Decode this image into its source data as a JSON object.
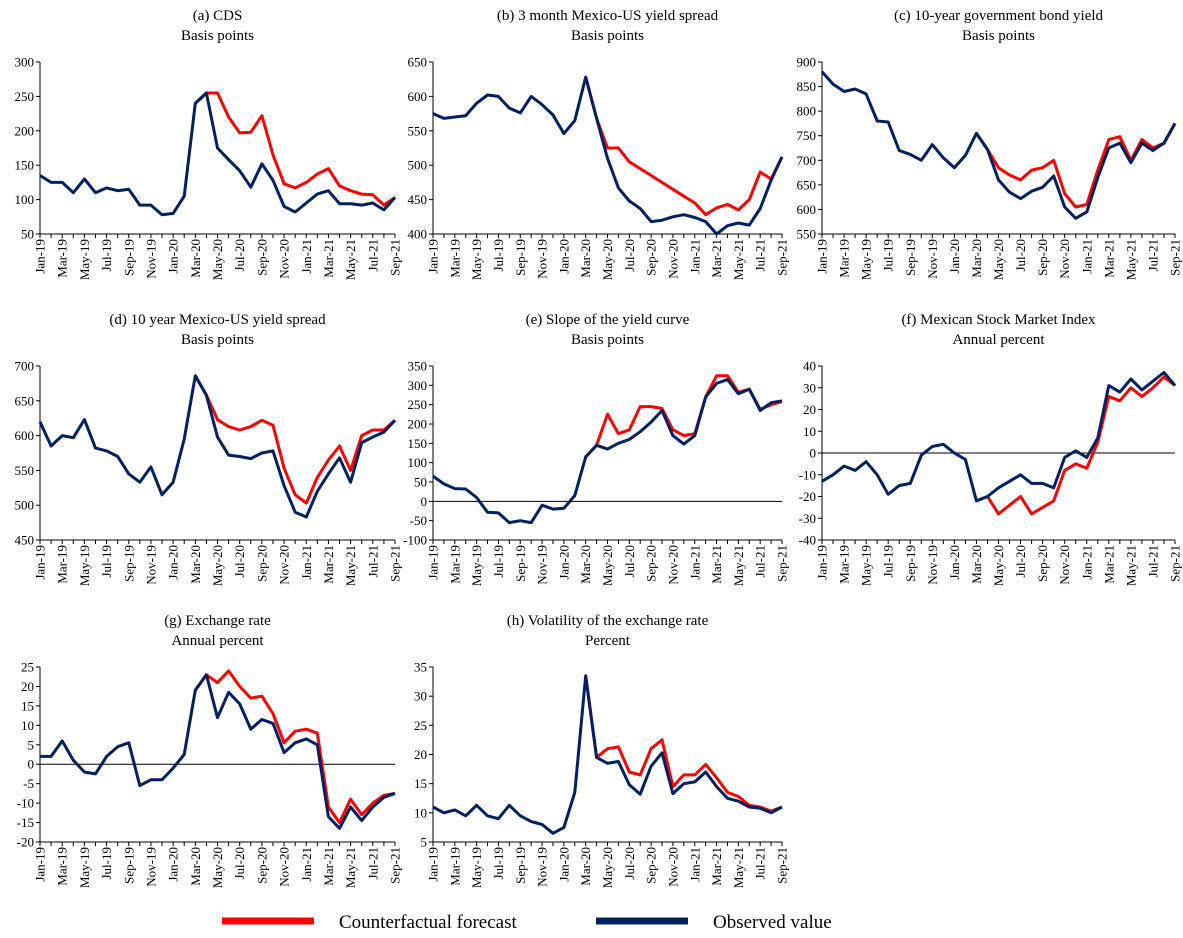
{
  "chart_data": [
    {
      "type": "line",
      "title": "(a) CDS",
      "subtitle": "Basis points",
      "categories": [
        "Jan-19",
        null,
        "Mar-19",
        null,
        "May-19",
        null,
        "Jul-19",
        null,
        "Sep-19",
        null,
        "Nov-19",
        null,
        "Jan-20",
        null,
        "Mar-20",
        null,
        "May-20",
        null,
        "Jul-20",
        null,
        "Sep-20",
        null,
        "Nov-20",
        null,
        "Jan-21",
        null,
        "Mar-21",
        null,
        "May-21",
        null,
        "Jul-21",
        null,
        "Sep-21"
      ],
      "ylim": [
        50,
        300
      ],
      "yticks": [
        50,
        100,
        150,
        200,
        250,
        300
      ],
      "zero_line": false,
      "series": [
        {
          "color": "#ff0000",
          "values": [
            null,
            null,
            null,
            null,
            null,
            null,
            null,
            null,
            null,
            null,
            null,
            null,
            null,
            null,
            240,
            255,
            255,
            220,
            197,
            198,
            222,
            165,
            123,
            117,
            125,
            137,
            145,
            120,
            113,
            108,
            107,
            92,
            103
          ]
        },
        {
          "color": "#002060",
          "values": [
            135,
            125,
            125,
            110,
            130,
            110,
            117,
            113,
            115,
            92,
            92,
            78,
            80,
            105,
            240,
            255,
            175,
            158,
            142,
            118,
            152,
            128,
            90,
            82,
            95,
            108,
            113,
            94,
            94,
            92,
            95,
            85,
            103
          ]
        }
      ]
    },
    {
      "type": "line",
      "title": "(b) 3 month Mexico-US yield spread",
      "subtitle": "Basis points",
      "categories": [
        "Jan-19",
        null,
        "Mar-19",
        null,
        "May-19",
        null,
        "Jul-19",
        null,
        "Sep-19",
        null,
        "Nov-19",
        null,
        "Jan-20",
        null,
        "Mar-20",
        null,
        "May-20",
        null,
        "Jul-20",
        null,
        "Sep-20",
        null,
        "Nov-20",
        null,
        "Jan-21",
        null,
        "Mar-21",
        null,
        "May-21",
        null,
        "Jul-21",
        null,
        "Sep-21"
      ],
      "ylim": [
        400,
        650
      ],
      "yticks": [
        400,
        450,
        500,
        550,
        600,
        650
      ],
      "zero_line": false,
      "series": [
        {
          "color": "#ff0000",
          "values": [
            null,
            null,
            null,
            null,
            null,
            null,
            null,
            null,
            null,
            null,
            null,
            null,
            null,
            null,
            628,
            568,
            525,
            525,
            505,
            495,
            485,
            475,
            465,
            455,
            445,
            428,
            438,
            443,
            435,
            450,
            490,
            480,
            512
          ]
        },
        {
          "color": "#002060",
          "values": [
            575,
            568,
            570,
            572,
            590,
            602,
            600,
            583,
            576,
            600,
            588,
            573,
            546,
            565,
            628,
            568,
            510,
            467,
            448,
            437,
            418,
            420,
            425,
            428,
            424,
            418,
            400,
            412,
            416,
            413,
            437,
            478,
            512
          ]
        }
      ]
    },
    {
      "type": "line",
      "title": "(c) 10-year government bond yield",
      "subtitle": "Basis points",
      "categories": [
        "Jan-19",
        null,
        "Mar-19",
        null,
        "May-19",
        null,
        "Jul-19",
        null,
        "Sep-19",
        null,
        "Nov-19",
        null,
        "Jan-20",
        null,
        "Mar-20",
        null,
        "May-20",
        null,
        "Jul-20",
        null,
        "Sep-20",
        null,
        "Nov-20",
        null,
        "Jan-21",
        null,
        "Mar-21",
        null,
        "May-21",
        null,
        "Jul-21",
        null,
        "Sep-21"
      ],
      "ylim": [
        550,
        900
      ],
      "yticks": [
        550,
        600,
        650,
        700,
        750,
        800,
        850,
        900
      ],
      "zero_line": false,
      "series": [
        {
          "color": "#ff0000",
          "values": [
            null,
            null,
            null,
            null,
            null,
            null,
            null,
            null,
            null,
            null,
            null,
            null,
            null,
            null,
            755,
            722,
            685,
            670,
            660,
            680,
            685,
            700,
            632,
            605,
            610,
            680,
            742,
            748,
            700,
            742,
            725,
            735,
            775
          ]
        },
        {
          "color": "#002060",
          "values": [
            880,
            855,
            840,
            845,
            835,
            780,
            778,
            720,
            712,
            700,
            732,
            705,
            685,
            710,
            755,
            722,
            660,
            635,
            622,
            637,
            645,
            668,
            605,
            582,
            595,
            665,
            725,
            735,
            695,
            735,
            720,
            735,
            775
          ]
        }
      ]
    },
    {
      "type": "line",
      "title": "(d) 10 year Mexico-US yield spread",
      "subtitle": "Basis points",
      "categories": [
        "Jan-19",
        null,
        "Mar-19",
        null,
        "May-19",
        null,
        "Jul-19",
        null,
        "Sep-19",
        null,
        "Nov-19",
        null,
        "Jan-20",
        null,
        "Mar-20",
        null,
        "May-20",
        null,
        "Jul-20",
        null,
        "Sep-20",
        null,
        "Nov-20",
        null,
        "Jan-21",
        null,
        "Mar-21",
        null,
        "May-21",
        null,
        "Jul-21",
        null,
        "Sep-21"
      ],
      "ylim": [
        450,
        700
      ],
      "yticks": [
        450,
        500,
        550,
        600,
        650,
        700
      ],
      "zero_line": false,
      "series": [
        {
          "color": "#ff0000",
          "values": [
            null,
            null,
            null,
            null,
            null,
            null,
            null,
            null,
            null,
            null,
            null,
            null,
            null,
            null,
            686,
            658,
            623,
            613,
            608,
            613,
            622,
            615,
            553,
            515,
            503,
            540,
            565,
            585,
            550,
            600,
            608,
            608,
            622
          ]
        },
        {
          "color": "#002060",
          "values": [
            620,
            585,
            600,
            597,
            623,
            582,
            578,
            570,
            545,
            533,
            555,
            515,
            533,
            595,
            686,
            658,
            598,
            572,
            570,
            567,
            575,
            578,
            528,
            490,
            483,
            520,
            545,
            568,
            533,
            590,
            598,
            605,
            622
          ]
        }
      ]
    },
    {
      "type": "line",
      "title": "(e) Slope of the yield curve",
      "subtitle": "Basis points",
      "categories": [
        "Jan-19",
        null,
        "Mar-19",
        null,
        "May-19",
        null,
        "Jul-19",
        null,
        "Sep-19",
        null,
        "Nov-19",
        null,
        "Jan-20",
        null,
        "Mar-20",
        null,
        "May-20",
        null,
        "Jul-20",
        null,
        "Sep-20",
        null,
        "Nov-20",
        null,
        "Jan-21",
        null,
        "Mar-21",
        null,
        "May-21",
        null,
        "Jul-21",
        null,
        "Sep-21"
      ],
      "ylim": [
        -100,
        350
      ],
      "yticks": [
        -100,
        -50,
        0,
        50,
        100,
        150,
        200,
        250,
        300,
        350
      ],
      "zero_line": true,
      "series": [
        {
          "color": "#ff0000",
          "values": [
            null,
            null,
            null,
            null,
            null,
            null,
            null,
            null,
            null,
            null,
            null,
            null,
            null,
            null,
            115,
            145,
            225,
            175,
            185,
            245,
            245,
            240,
            185,
            170,
            175,
            270,
            325,
            325,
            282,
            290,
            238,
            250,
            258
          ]
        },
        {
          "color": "#002060",
          "values": [
            65,
            45,
            33,
            32,
            10,
            -28,
            -30,
            -55,
            -50,
            -55,
            -10,
            -20,
            -18,
            15,
            115,
            145,
            135,
            150,
            160,
            180,
            205,
            235,
            170,
            148,
            170,
            270,
            305,
            315,
            278,
            290,
            235,
            255,
            260
          ]
        }
      ]
    },
    {
      "type": "line",
      "title": "(f) Mexican Stock Market Index",
      "subtitle": "Annual percent",
      "categories": [
        "Jan-19",
        null,
        "Mar-19",
        null,
        "May-19",
        null,
        "Jul-19",
        null,
        "Sep-19",
        null,
        "Nov-19",
        null,
        "Jan-20",
        null,
        "Mar-20",
        null,
        "May-20",
        null,
        "Jul-20",
        null,
        "Sep-20",
        null,
        "Nov-20",
        null,
        "Jan-21",
        null,
        "Mar-21",
        null,
        "May-21",
        null,
        "Jul-21",
        null,
        "Sep-21"
      ],
      "ylim": [
        -40,
        40
      ],
      "yticks": [
        -40,
        -30,
        -20,
        -10,
        0,
        10,
        20,
        30,
        40
      ],
      "zero_line": true,
      "series": [
        {
          "color": "#ff0000",
          "values": [
            null,
            null,
            null,
            null,
            null,
            null,
            null,
            null,
            null,
            null,
            null,
            null,
            null,
            null,
            -22,
            -20,
            -28,
            -24,
            -20,
            -28,
            -25,
            -22,
            -8,
            -5,
            -7,
            5,
            26,
            24,
            30,
            26,
            30,
            35,
            31
          ]
        },
        {
          "color": "#002060",
          "values": [
            -13,
            -10,
            -6,
            -8,
            -4,
            -10,
            -19,
            -15,
            -14,
            -1,
            3,
            4,
            0,
            -3,
            -22,
            -20,
            -16,
            -13,
            -10,
            -14,
            -14,
            -16,
            -2,
            1,
            -2,
            7,
            31,
            28,
            34,
            29,
            33,
            37,
            31
          ]
        }
      ]
    },
    {
      "type": "line",
      "title": "(g) Exchange rate",
      "subtitle": "Annual percent",
      "categories": [
        "Jan-19",
        null,
        "Mar-19",
        null,
        "May-19",
        null,
        "Jul-19",
        null,
        "Sep-19",
        null,
        "Nov-19",
        null,
        "Jan-20",
        null,
        "Mar-20",
        null,
        "May-20",
        null,
        "Jul-20",
        null,
        "Sep-20",
        null,
        "Nov-20",
        null,
        "Jan-21",
        null,
        "Mar-21",
        null,
        "May-21",
        null,
        "Jul-21",
        null,
        "Sep-21"
      ],
      "ylim": [
        -20,
        25
      ],
      "yticks": [
        -20,
        -15,
        -10,
        -5,
        0,
        5,
        10,
        15,
        20,
        25
      ],
      "zero_line": true,
      "series": [
        {
          "color": "#ff0000",
          "values": [
            null,
            null,
            null,
            null,
            null,
            null,
            null,
            null,
            null,
            null,
            null,
            null,
            null,
            null,
            19,
            23,
            21,
            24,
            20,
            17,
            17.5,
            13,
            5.5,
            8.5,
            9,
            8,
            -11,
            -15,
            -9,
            -13,
            -10,
            -8,
            -7.5
          ]
        },
        {
          "color": "#002060",
          "values": [
            2,
            2,
            6,
            1,
            -2,
            -2.5,
            2,
            4.5,
            5.5,
            -5.5,
            -4,
            -4,
            -1,
            2.5,
            19,
            23,
            12,
            18.5,
            15.5,
            9,
            11.5,
            10.5,
            3,
            5.5,
            6.5,
            5,
            -13.5,
            -16.5,
            -11,
            -14.5,
            -11,
            -8.5,
            -7.5
          ]
        }
      ]
    },
    {
      "type": "line",
      "title": "(h) Volatility of the exchange rate",
      "subtitle": "Percent",
      "categories": [
        "Jan-19",
        null,
        "Mar-19",
        null,
        "May-19",
        null,
        "Jul-19",
        null,
        "Sep-19",
        null,
        "Nov-19",
        null,
        "Jan-20",
        null,
        "Mar-20",
        null,
        "May-20",
        null,
        "Jul-20",
        null,
        "Sep-20",
        null,
        "Nov-20",
        null,
        "Jan-21",
        null,
        "Mar-21",
        null,
        "May-21",
        null,
        "Jul-21",
        null,
        "Sep-21"
      ],
      "ylim": [
        5,
        35
      ],
      "yticks": [
        5,
        10,
        15,
        20,
        25,
        30,
        35
      ],
      "zero_line": false,
      "series": [
        {
          "color": "#ff0000",
          "values": [
            null,
            null,
            null,
            null,
            null,
            null,
            null,
            null,
            null,
            null,
            null,
            null,
            null,
            null,
            33.5,
            19.5,
            21,
            21.3,
            17,
            16.5,
            21,
            22.5,
            14.5,
            16.5,
            16.5,
            18.3,
            16,
            13.5,
            12.8,
            11.3,
            11,
            10.3,
            11
          ]
        },
        {
          "color": "#002060",
          "values": [
            11,
            10,
            10.5,
            9.5,
            11.3,
            9.5,
            9,
            11.3,
            9.5,
            8.5,
            8,
            6.5,
            7.5,
            13.5,
            33.5,
            19.5,
            18.5,
            18.8,
            14.8,
            13.2,
            18,
            20.3,
            13.3,
            15,
            15.3,
            17,
            14.5,
            12.5,
            12,
            11,
            10.8,
            10,
            11
          ]
        }
      ]
    }
  ],
  "legend": [
    {
      "name": "Counterfactual forecast",
      "color": "#ff0000"
    },
    {
      "name": "Observed value",
      "color": "#002060"
    }
  ]
}
